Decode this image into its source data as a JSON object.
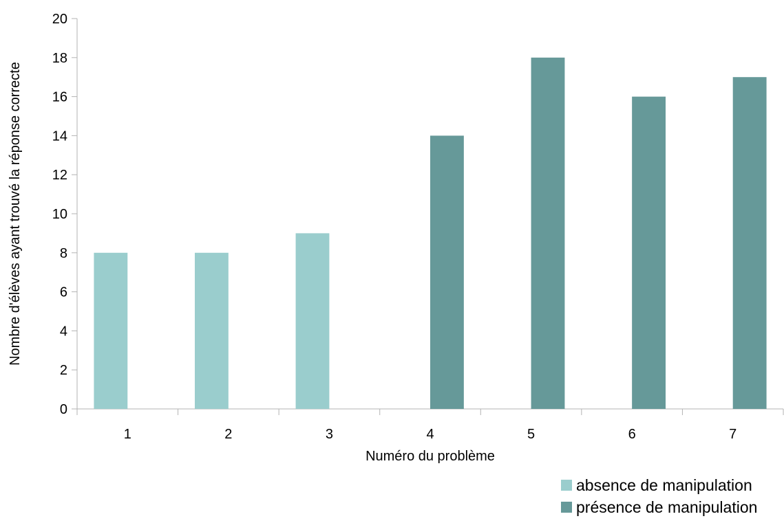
{
  "chart_data": {
    "type": "bar",
    "categories": [
      "1",
      "2",
      "3",
      "4",
      "5",
      "6",
      "7"
    ],
    "series": [
      {
        "name": "absence de manipulation",
        "color": "#9ACDCD",
        "values": [
          8,
          8,
          9,
          null,
          null,
          null,
          null
        ]
      },
      {
        "name": "présence de manipulation",
        "color": "#669999",
        "values": [
          null,
          null,
          null,
          14,
          18,
          16,
          17
        ]
      }
    ],
    "xlabel": "Numéro du problème",
    "ylabel": "Nombre d'élèves ayant trouvé la réponse correcte",
    "ylim": [
      0,
      20
    ],
    "yticks": [
      0,
      2,
      4,
      6,
      8,
      10,
      12,
      14,
      16,
      18,
      20
    ],
    "grid": false,
    "legend_position": "bottom-right"
  }
}
